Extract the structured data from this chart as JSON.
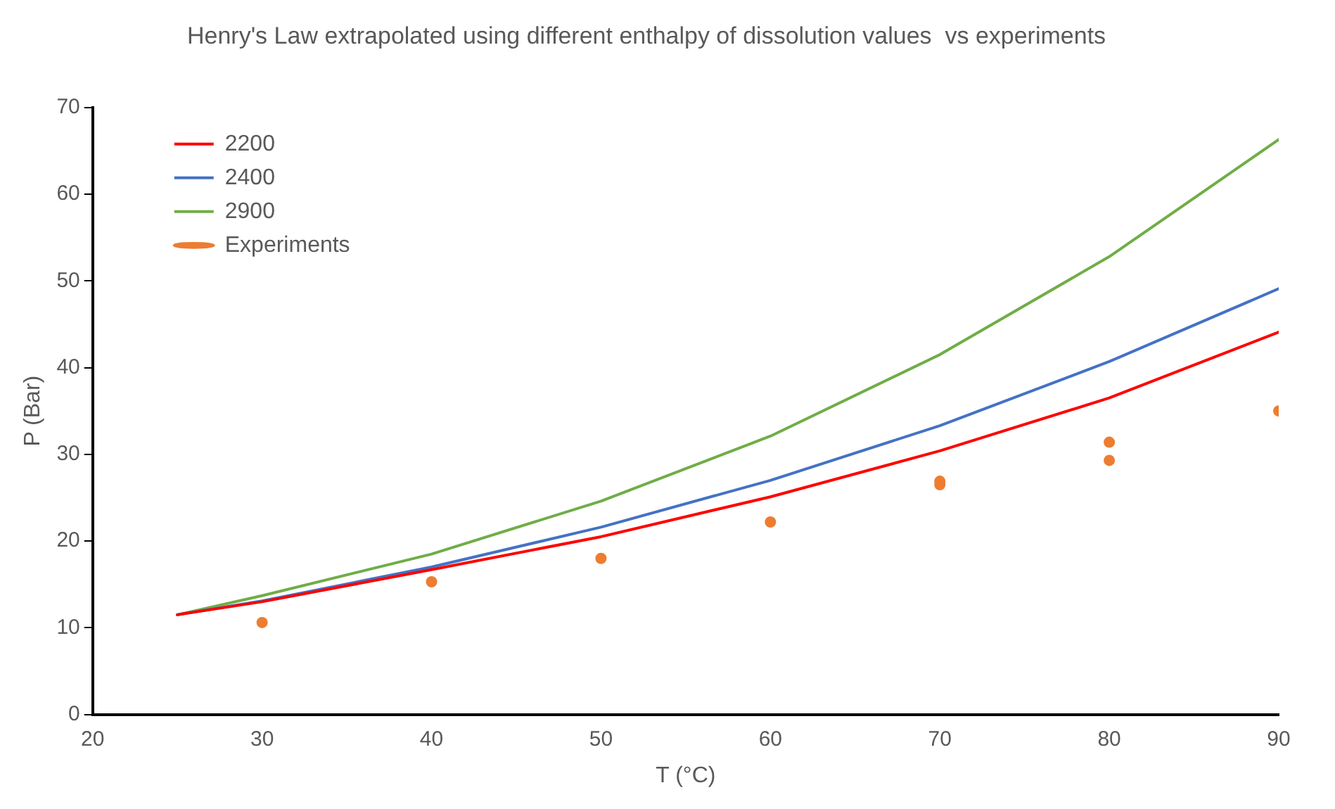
{
  "chart_data": {
    "type": "line",
    "title": "Henry's Law extrapolated using different enthalpy of dissolution values  vs experiments",
    "xlabel": "T (°C)",
    "ylabel": "P (Bar)",
    "xlim": [
      20,
      90
    ],
    "xticks": [
      20,
      30,
      40,
      50,
      60,
      70,
      80,
      90
    ],
    "ylim": [
      0,
      70
    ],
    "yticks": [
      0,
      10,
      20,
      30,
      40,
      50,
      60,
      70
    ],
    "grid": false,
    "legend": "top left",
    "marker": "none",
    "series": [
      {
        "name": "2200",
        "color": "#ff0000",
        "x": [
          25,
          30,
          40,
          50,
          60,
          70,
          80,
          90
        ],
        "values": [
          11.5,
          13.0,
          16.7,
          20.5,
          25.1,
          30.4,
          36.5,
          44.1
        ]
      },
      {
        "name": "2400",
        "color": "#4472c4",
        "x": [
          25,
          30,
          40,
          50,
          60,
          70,
          80,
          90
        ],
        "values": [
          11.5,
          13.1,
          17.0,
          21.6,
          27.0,
          33.3,
          40.7,
          49.1
        ]
      },
      {
        "name": "2900",
        "color": "#70ad47",
        "x": [
          25,
          30,
          40,
          50,
          60,
          70,
          80,
          90
        ],
        "values": [
          11.5,
          13.7,
          18.5,
          24.6,
          32.1,
          41.5,
          52.8,
          66.3
        ]
      },
      {
        "name": "Experiments",
        "type": "scatter",
        "marker": "circle",
        "color": "#ed7d31",
        "x": [
          30,
          40,
          50,
          60,
          70,
          70,
          80,
          80,
          90
        ],
        "values": [
          10.6,
          15.3,
          18.0,
          22.2,
          26.9,
          26.5,
          31.4,
          29.3,
          35.0
        ]
      }
    ]
  }
}
